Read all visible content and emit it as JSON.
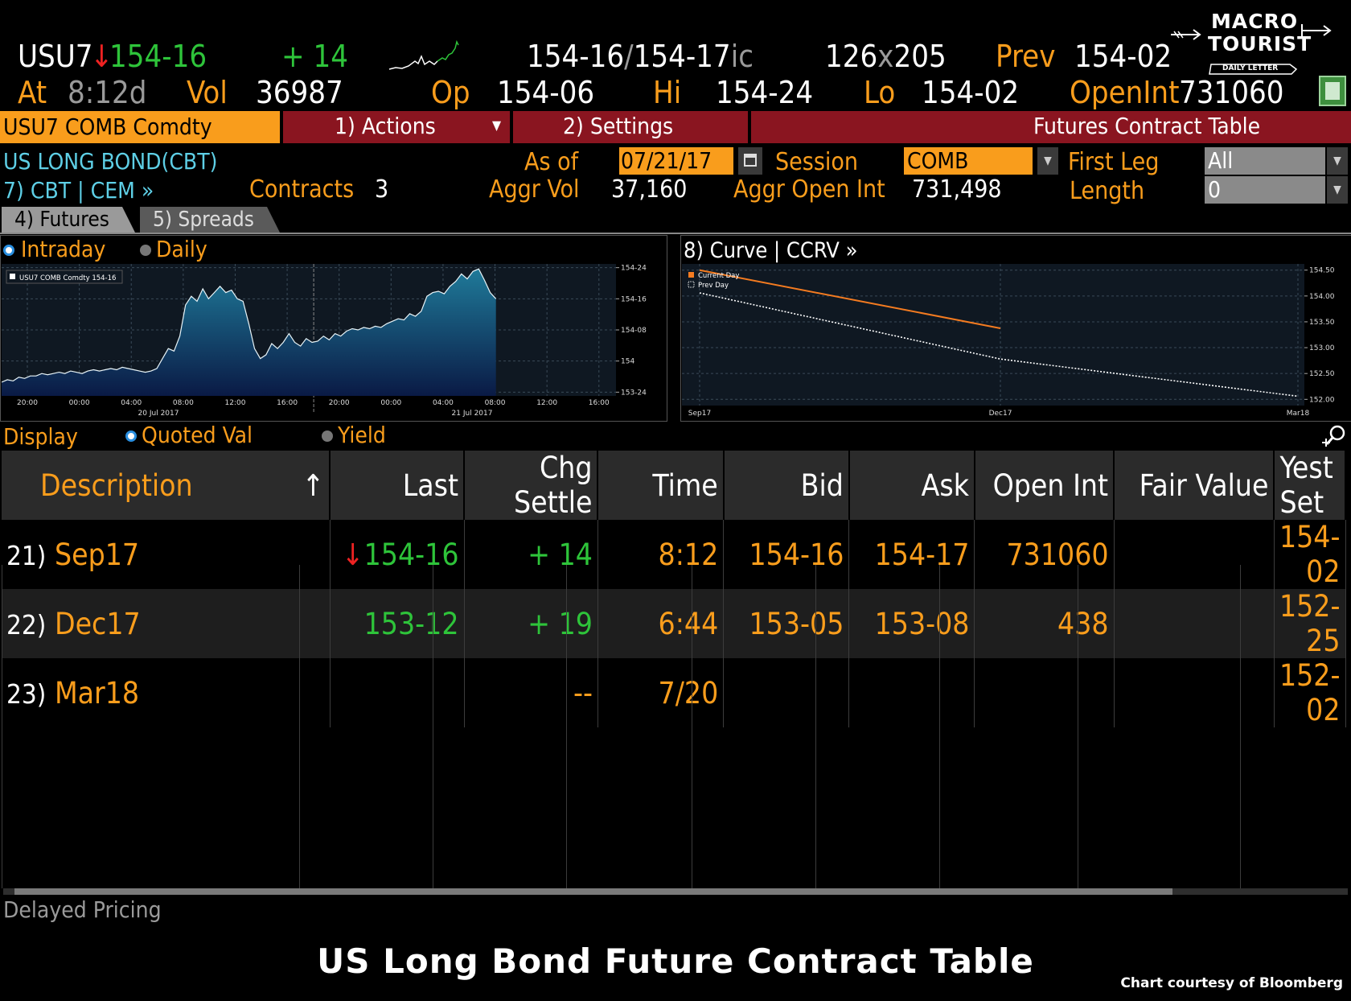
{
  "header": {
    "ticker": "USU7",
    "last_arrow": "↓",
    "last": "154-16",
    "change": "+ 14",
    "bid": "154-16",
    "ask": "154-17",
    "ask_suffix": "ic",
    "bid_size": "126",
    "ask_size": "205",
    "size_sep": "x",
    "prev_label": "Prev",
    "prev": "154-02",
    "at_label": "At",
    "at_time": "8:12d",
    "vol_label": "Vol",
    "vol": "36987",
    "op_label": "Op",
    "open": "154-06",
    "hi_label": "Hi",
    "high": "154-24",
    "lo_label": "Lo",
    "low": "154-02",
    "openint_label": "OpenInt",
    "openint": "731060"
  },
  "logo": {
    "line1": "MACRO",
    "line2": "TOURIST",
    "line3": "DAILY LETTER"
  },
  "toolbar": {
    "security": "USU7 COMB Comdty",
    "actions": "1) Actions",
    "settings": "2) Settings",
    "title": "Futures Contract Table"
  },
  "info": {
    "name": "US LONG BOND(CBT)",
    "exchange_link": "7) CBT | CEM »",
    "contracts_label": "Contracts",
    "contracts": "3",
    "asof_label": "As of",
    "asof_value": "07/21/17",
    "aggr_vol_label": "Aggr Vol",
    "aggr_vol": "37,160",
    "session_label": "Session",
    "session_value": "COMB",
    "aggr_oi_label": "Aggr Open Int",
    "aggr_oi": "731,498",
    "first_leg_label": "First Leg",
    "first_leg_value": "All",
    "length_label": "Length",
    "length_value": "0"
  },
  "tabs": {
    "futures": "4) Futures",
    "spreads": "5) Spreads"
  },
  "intraday_panel": {
    "intraday_label": "Intraday",
    "daily_label": "Daily"
  },
  "curve_panel": {
    "title": "8) Curve | CCRV »"
  },
  "display": {
    "label": "Display",
    "quoted_label": "Quoted Val",
    "yield_label": "Yield"
  },
  "table": {
    "columns": [
      "Description",
      "Last",
      "Chg Settle",
      "Time",
      "Bid",
      "Ask",
      "Open Int",
      "Fair Value",
      "Yest Set"
    ],
    "sort_arrow": "↑",
    "rows": [
      {
        "num": "21)",
        "desc": "Sep17",
        "arrow": "↓",
        "last": "154-16",
        "chg": "+ 14",
        "time": "8:12",
        "bid": "154-16",
        "ask": "154-17",
        "oi": "731060",
        "fair": "",
        "yest": "154-02"
      },
      {
        "num": "22)",
        "desc": "Dec17",
        "arrow": "",
        "last": "153-12",
        "chg": "+ 19",
        "time": "6:44",
        "bid": "153-05",
        "ask": "153-08",
        "oi": "438",
        "fair": "",
        "yest": "152-25"
      },
      {
        "num": "23)",
        "desc": "Mar18",
        "arrow": "",
        "last": "",
        "chg": "--",
        "time": "7/20",
        "bid": "",
        "ask": "",
        "oi": "",
        "fair": "",
        "yest": "152-02"
      }
    ]
  },
  "footer": {
    "delayed": "Delayed Pricing",
    "caption": "US Long Bond Future Contract Table",
    "credit": "Chart courtesy of Bloomberg"
  },
  "chart_data": [
    {
      "type": "area",
      "legend": [
        "USU7 COMB Comdty 154-16"
      ],
      "x_tick_labels": [
        "20:00",
        "00:00",
        "04:00",
        "08:00",
        "12:00",
        "16:00",
        "20:00",
        "00:00",
        "04:00",
        "08:00",
        "12:00",
        "16:00"
      ],
      "date_labels": [
        "20 Jul 2017",
        "21 Jul 2017"
      ],
      "y_tick_labels": [
        "154-24",
        "154-16",
        "154-08",
        "154",
        "153-24"
      ],
      "ylim": [
        153.72,
        154.78
      ],
      "series": [
        {
          "name": "USU7 COMB Comdty",
          "values": [
            153.83,
            153.85,
            153.84,
            153.87,
            153.86,
            153.88,
            153.88,
            153.9,
            153.89,
            153.9,
            153.91,
            153.9,
            153.92,
            153.91,
            153.9,
            153.92,
            153.93,
            153.92,
            153.93,
            153.94,
            153.93,
            153.95,
            153.94,
            153.93,
            153.92,
            153.91,
            153.92,
            153.94,
            154.02,
            154.1,
            154.08,
            154.2,
            154.45,
            154.52,
            154.48,
            154.58,
            154.5,
            154.55,
            154.6,
            154.55,
            154.57,
            154.5,
            154.48,
            154.3,
            154.1,
            154.02,
            154.05,
            154.14,
            154.1,
            154.15,
            154.22,
            154.15,
            154.12,
            154.18,
            154.15,
            154.16,
            154.2,
            154.17,
            154.22,
            154.2,
            154.24,
            154.26,
            154.25,
            154.27,
            154.26,
            154.28,
            154.27,
            154.3,
            154.32,
            154.34,
            154.33,
            154.38,
            154.36,
            154.4,
            154.52,
            154.55,
            154.56,
            154.54,
            154.6,
            154.64,
            154.7,
            154.66,
            154.72,
            154.74,
            154.65,
            154.55,
            154.5
          ]
        }
      ]
    },
    {
      "type": "line",
      "categories": [
        "Sep17",
        "Dec17",
        "Mar18"
      ],
      "y_tick_labels": [
        "154.50",
        "154.00",
        "153.50",
        "153.00",
        "152.50",
        "152.00"
      ],
      "ylim": [
        151.88,
        154.62
      ],
      "series": [
        {
          "name": "Current Day",
          "values": [
            154.5,
            153.375,
            null
          ]
        },
        {
          "name": "Prev Day",
          "values": [
            154.06,
            152.78,
            152.06
          ]
        }
      ]
    }
  ]
}
